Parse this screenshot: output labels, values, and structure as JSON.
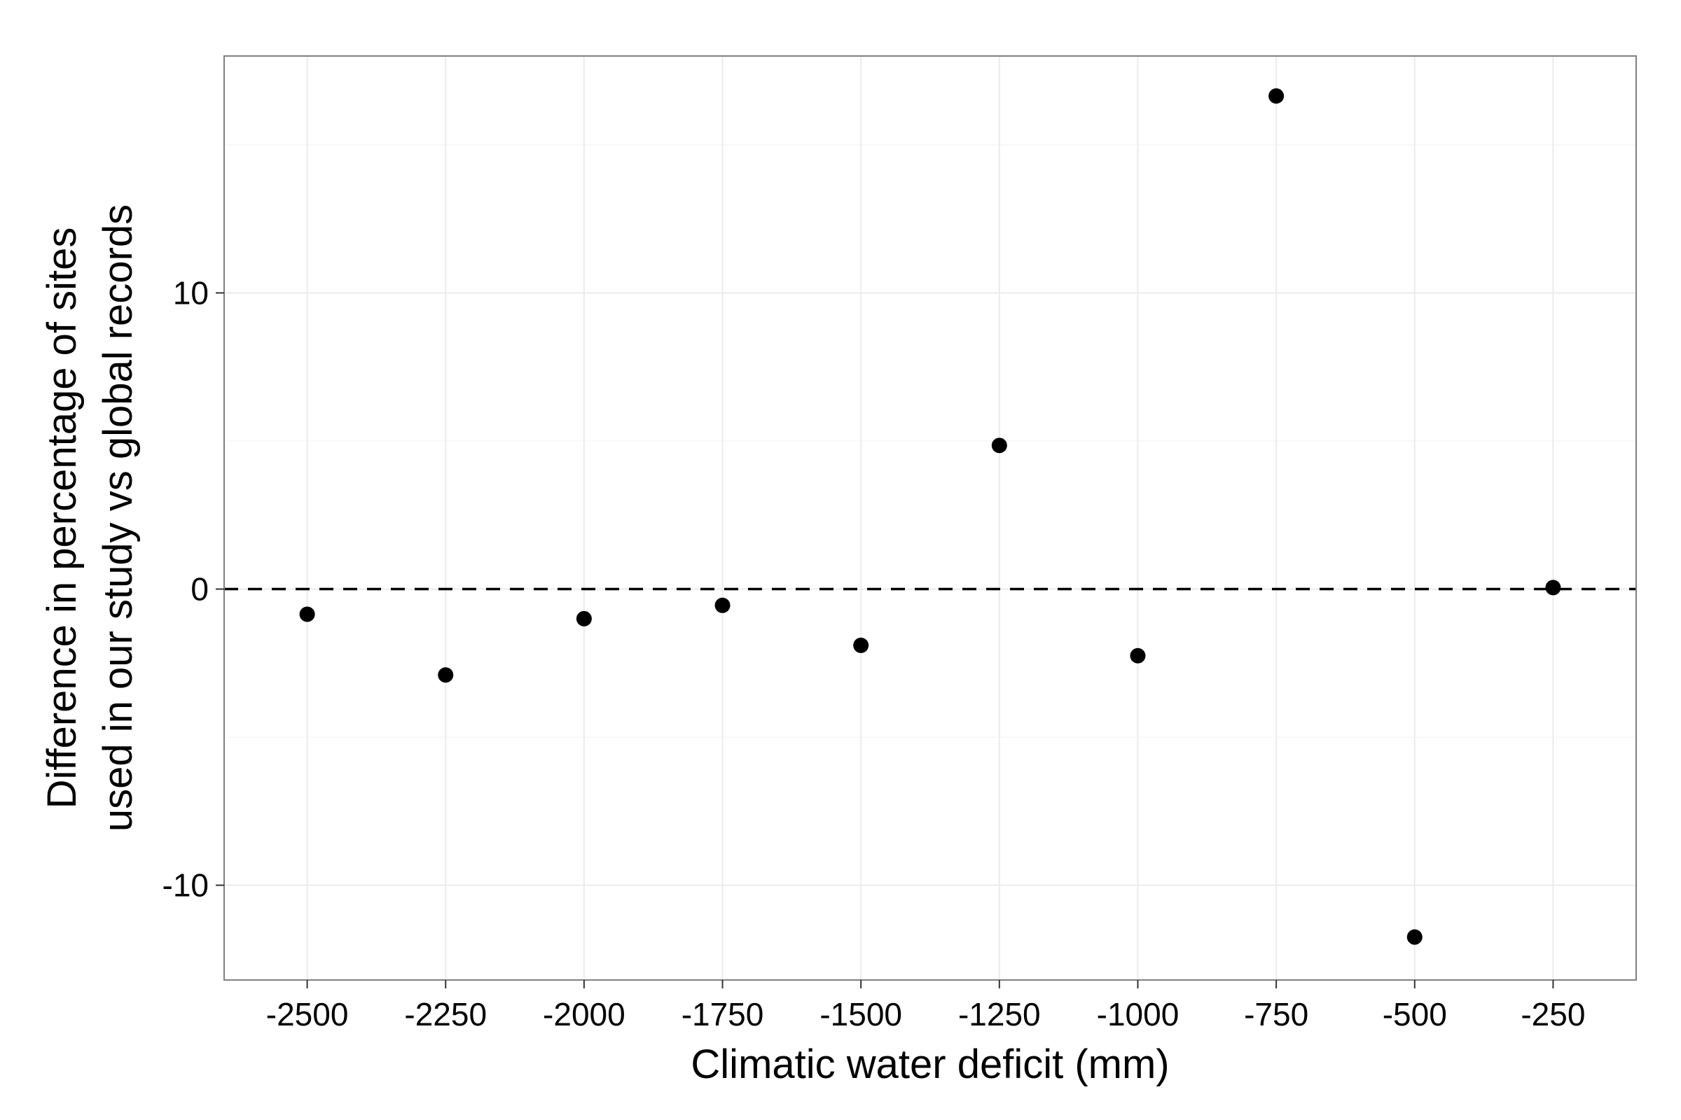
{
  "chart_data": {
    "type": "scatter",
    "title": "",
    "xlabel": "Climatic water deficit (mm)",
    "ylabel_lines": [
      "Difference in percentage of sites",
      "used in our study vs global records"
    ],
    "x_ticks": [
      -2500,
      -2250,
      -2000,
      -1750,
      -1500,
      -1250,
      -1000,
      -750,
      -500,
      -250
    ],
    "y_ticks": [
      -10,
      0,
      10
    ],
    "xlim": [
      -2650,
      -100
    ],
    "ylim": [
      -13.2,
      18
    ],
    "grid": true,
    "reference_line": {
      "y": 0,
      "style": "dashed"
    },
    "series": [
      {
        "points": [
          {
            "x": -2500,
            "y": -0.85
          },
          {
            "x": -2250,
            "y": -2.9
          },
          {
            "x": -2000,
            "y": -1.0
          },
          {
            "x": -1750,
            "y": -0.55
          },
          {
            "x": -1500,
            "y": -1.9
          },
          {
            "x": -1250,
            "y": 4.85
          },
          {
            "x": -1000,
            "y": -2.25
          },
          {
            "x": -750,
            "y": 16.65
          },
          {
            "x": -500,
            "y": -11.75
          },
          {
            "x": -250,
            "y": 0.05
          }
        ]
      }
    ],
    "colors": {
      "point": "#000000",
      "grid": "#ebebeb",
      "panel_border": "#7f7f7f",
      "reference_line": "#000000"
    }
  }
}
